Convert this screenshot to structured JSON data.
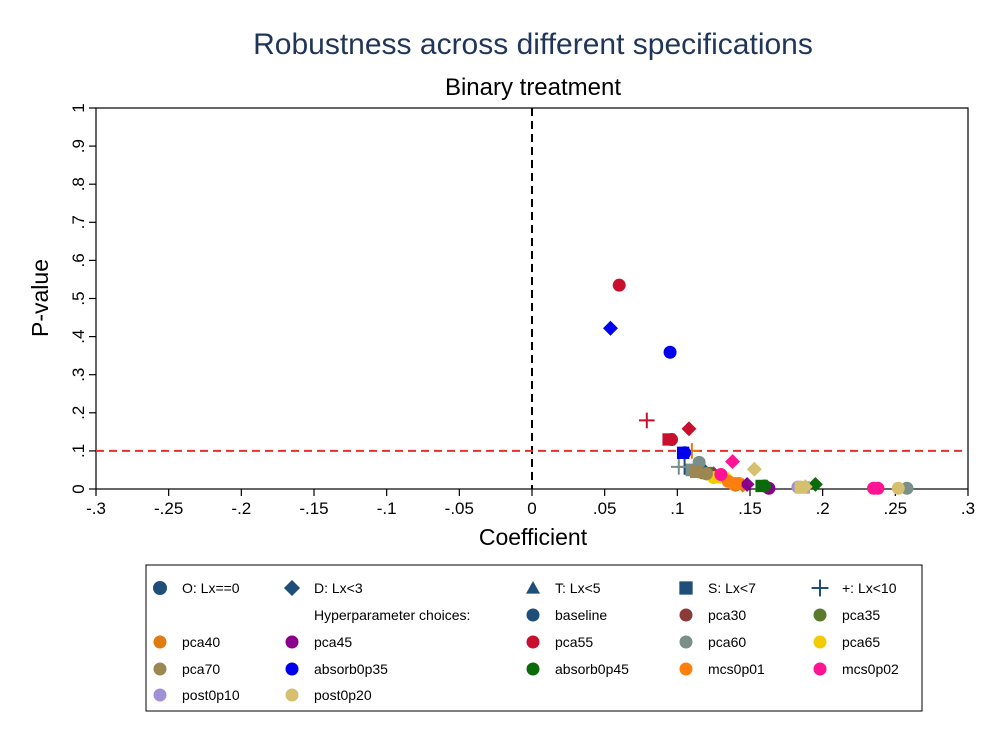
{
  "chart_data": {
    "type": "scatter",
    "title": "Robustness across different specifications",
    "subtitle": "Binary treatment",
    "xlabel": "Coefficient",
    "ylabel": "P-value",
    "xlim": [
      -0.3,
      0.3
    ],
    "ylim": [
      0,
      1
    ],
    "x_ticks": [
      -0.3,
      -0.25,
      -0.2,
      -0.15,
      -0.1,
      -0.05,
      0,
      0.05,
      0.1,
      0.15,
      0.2,
      0.25,
      0.3
    ],
    "x_tick_labels": [
      "-.3",
      "-.25",
      "-.2",
      "-.15",
      "-.1",
      "-.05",
      "0",
      ".05",
      ".1",
      ".15",
      ".2",
      ".25",
      ".3"
    ],
    "y_ticks": [
      0,
      0.1,
      0.2,
      0.3,
      0.4,
      0.5,
      0.6,
      0.7,
      0.8,
      0.9,
      1
    ],
    "y_tick_labels": [
      "0",
      ".1",
      ".2",
      ".3",
      ".4",
      ".5",
      ".6",
      ".7",
      ".8",
      ".9",
      "1"
    ],
    "grid": false,
    "reference_lines": [
      {
        "axis": "x",
        "value": 0,
        "style": "dashed",
        "color": "#000000"
      },
      {
        "axis": "y",
        "value": 0.1,
        "style": "dashed",
        "color": "#e8312a"
      }
    ],
    "legend_placement": "bottom",
    "marker_legend": [
      {
        "label": "O: Lx==0",
        "marker": "circle"
      },
      {
        "label": "D: Lx<3",
        "marker": "diamond"
      },
      {
        "label": "T: Lx<5",
        "marker": "triangle"
      },
      {
        "label": "S: Lx<7",
        "marker": "square"
      },
      {
        "label": "+: Lx<10",
        "marker": "plus"
      }
    ],
    "legend_heading": "Hyperparameter choices:",
    "series": [
      {
        "name": "baseline",
        "color": "#1f4e79",
        "points": [
          {
            "x": 0.115,
            "y": 0.06,
            "marker": "circle"
          },
          {
            "x": 0.118,
            "y": 0.05,
            "marker": "diamond"
          },
          {
            "x": 0.112,
            "y": 0.055,
            "marker": "triangle"
          },
          {
            "x": 0.11,
            "y": 0.05,
            "marker": "square"
          },
          {
            "x": 0.105,
            "y": 0.058,
            "marker": "plus"
          }
        ]
      },
      {
        "name": "pca30",
        "color": "#8b3a3a",
        "points": [
          {
            "x": 0.12,
            "y": 0.04,
            "marker": "circle"
          },
          {
            "x": 0.125,
            "y": 0.04,
            "marker": "diamond"
          }
        ]
      },
      {
        "name": "pca35",
        "color": "#5a7a2e",
        "points": [
          {
            "x": 0.115,
            "y": 0.045,
            "marker": "circle"
          },
          {
            "x": 0.12,
            "y": 0.042,
            "marker": "square"
          }
        ]
      },
      {
        "name": "pca40",
        "color": "#e07b10",
        "points": [
          {
            "x": 0.14,
            "y": 0.01,
            "marker": "circle"
          },
          {
            "x": 0.145,
            "y": 0.01,
            "marker": "diamond"
          },
          {
            "x": 0.11,
            "y": 0.1,
            "marker": "plus"
          }
        ]
      },
      {
        "name": "pca45",
        "color": "#8b008b",
        "points": [
          {
            "x": 0.148,
            "y": 0.012,
            "marker": "diamond"
          },
          {
            "x": 0.163,
            "y": 0.002,
            "marker": "circle"
          }
        ]
      },
      {
        "name": "pca55",
        "color": "#c8102e",
        "points": [
          {
            "x": 0.06,
            "y": 0.535,
            "marker": "circle"
          },
          {
            "x": 0.108,
            "y": 0.158,
            "marker": "diamond"
          },
          {
            "x": 0.079,
            "y": 0.18,
            "marker": "plus"
          },
          {
            "x": 0.094,
            "y": 0.13,
            "marker": "square"
          },
          {
            "x": 0.096,
            "y": 0.13,
            "marker": "circle"
          }
        ]
      },
      {
        "name": "pca60",
        "color": "#7a8f8a",
        "points": [
          {
            "x": 0.258,
            "y": 0.002,
            "marker": "circle"
          },
          {
            "x": 0.11,
            "y": 0.05,
            "marker": "square"
          },
          {
            "x": 0.115,
            "y": 0.07,
            "marker": "circle"
          },
          {
            "x": 0.101,
            "y": 0.058,
            "marker": "plus"
          }
        ]
      },
      {
        "name": "pca65",
        "color": "#f2cc00",
        "points": [
          {
            "x": 0.125,
            "y": 0.03,
            "marker": "circle"
          },
          {
            "x": 0.135,
            "y": 0.025,
            "marker": "diamond"
          },
          {
            "x": 0.13,
            "y": 0.028,
            "marker": "triangle"
          }
        ]
      },
      {
        "name": "pca70",
        "color": "#9c8752",
        "points": [
          {
            "x": 0.113,
            "y": 0.045,
            "marker": "square"
          },
          {
            "x": 0.12,
            "y": 0.04,
            "marker": "circle"
          }
        ]
      },
      {
        "name": "absorb0p35",
        "color": "#0000ee",
        "points": [
          {
            "x": 0.054,
            "y": 0.422,
            "marker": "diamond"
          },
          {
            "x": 0.095,
            "y": 0.359,
            "marker": "circle"
          },
          {
            "x": 0.104,
            "y": 0.095,
            "marker": "square"
          },
          {
            "x": 0.105,
            "y": 0.095,
            "marker": "circle"
          }
        ]
      },
      {
        "name": "absorb0p45",
        "color": "#0b6b0b",
        "points": [
          {
            "x": 0.16,
            "y": 0.008,
            "marker": "circle"
          },
          {
            "x": 0.195,
            "y": 0.012,
            "marker": "diamond"
          },
          {
            "x": 0.158,
            "y": 0.008,
            "marker": "square"
          }
        ]
      },
      {
        "name": "mcs0p01",
        "color": "#ff7f0e",
        "points": [
          {
            "x": 0.135,
            "y": 0.02,
            "marker": "circle"
          },
          {
            "x": 0.14,
            "y": 0.015,
            "marker": "square"
          }
        ]
      },
      {
        "name": "mcs0p02",
        "color": "#ff1493",
        "points": [
          {
            "x": 0.138,
            "y": 0.072,
            "marker": "diamond"
          },
          {
            "x": 0.13,
            "y": 0.038,
            "marker": "circle"
          },
          {
            "x": 0.235,
            "y": 0.002,
            "marker": "circle"
          },
          {
            "x": 0.238,
            "y": 0.002,
            "marker": "circle"
          }
        ]
      },
      {
        "name": "post0p10",
        "color": "#a091d6",
        "points": [
          {
            "x": 0.183,
            "y": 0.005,
            "marker": "circle"
          },
          {
            "x": 0.187,
            "y": 0.004,
            "marker": "square"
          }
        ]
      },
      {
        "name": "post0p20",
        "color": "#d6bf6e",
        "points": [
          {
            "x": 0.153,
            "y": 0.052,
            "marker": "diamond"
          },
          {
            "x": 0.185,
            "y": 0.005,
            "marker": "circle"
          },
          {
            "x": 0.188,
            "y": 0.006,
            "marker": "diamond"
          },
          {
            "x": 0.252,
            "y": 0.002,
            "marker": "circle"
          },
          {
            "x": 0.185,
            "y": 0.004,
            "marker": "square"
          }
        ]
      }
    ],
    "marker_key_color": "#1f4e79"
  }
}
